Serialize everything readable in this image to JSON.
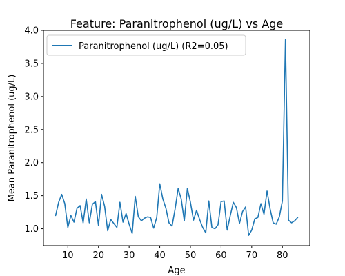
{
  "chart_data": {
    "type": "line",
    "title": "Feature: Paranitrophenol (ug/L) vs Age",
    "xlabel": "Age",
    "ylabel": "Mean Paranitrophenol (ug/L)",
    "xlim": [
      2.05,
      88.95
    ],
    "ylim": [
      0.745,
      4.0
    ],
    "xticks": [
      10,
      20,
      30,
      40,
      50,
      60,
      70,
      80
    ],
    "yticks": [
      1.0,
      1.5,
      2.0,
      2.5,
      3.0,
      3.5,
      4.0
    ],
    "ytick_labels": [
      "1.0",
      "1.5",
      "2.0",
      "2.5",
      "3.0",
      "3.5",
      "4.0"
    ],
    "grid": false,
    "legend_position": "top-left",
    "series": [
      {
        "name": "Paranitrophenol (ug/L) (R2=0.05)",
        "color": "#1f77b4",
        "x": [
          6,
          7,
          8,
          9,
          10,
          11,
          12,
          13,
          14,
          15,
          16,
          17,
          18,
          19,
          20,
          21,
          22,
          23,
          24,
          25,
          26,
          27,
          28,
          29,
          30,
          31,
          32,
          33,
          34,
          35,
          36,
          37,
          38,
          39,
          40,
          41,
          42,
          43,
          44,
          45,
          46,
          47,
          48,
          49,
          50,
          51,
          52,
          53,
          54,
          55,
          56,
          57,
          58,
          59,
          60,
          61,
          62,
          63,
          64,
          65,
          66,
          67,
          68,
          69,
          70,
          71,
          72,
          73,
          74,
          75,
          76,
          77,
          78,
          79,
          80,
          81,
          82,
          83,
          84,
          85
        ],
        "y": [
          1.2,
          1.4,
          1.52,
          1.38,
          1.02,
          1.2,
          1.1,
          1.31,
          1.35,
          1.09,
          1.45,
          1.09,
          1.37,
          1.41,
          1.05,
          1.52,
          1.34,
          0.97,
          1.14,
          1.08,
          1.02,
          1.4,
          1.1,
          1.23,
          1.07,
          0.93,
          1.49,
          1.18,
          1.12,
          1.16,
          1.18,
          1.17,
          1.01,
          1.17,
          1.68,
          1.45,
          1.31,
          1.09,
          1.04,
          1.3,
          1.61,
          1.45,
          1.12,
          1.61,
          1.4,
          1.13,
          1.28,
          1.14,
          1.02,
          0.94,
          1.42,
          1.02,
          1.0,
          1.06,
          1.41,
          1.42,
          0.98,
          1.2,
          1.4,
          1.32,
          1.08,
          1.26,
          1.33,
          0.9,
          0.98,
          1.15,
          1.17,
          1.38,
          1.22,
          1.57,
          1.3,
          1.09,
          1.07,
          1.18,
          1.42,
          3.86,
          1.13,
          1.09,
          1.12,
          1.17
        ]
      }
    ]
  }
}
